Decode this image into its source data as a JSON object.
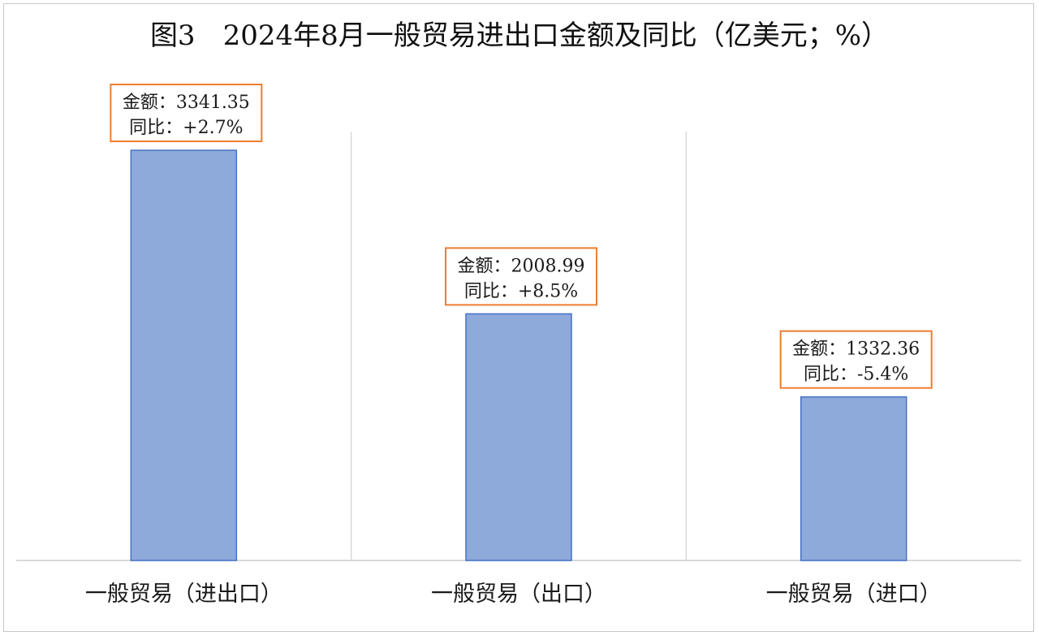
{
  "chart_data": {
    "type": "bar",
    "title": "图3　2024年8月一般贸易进出口金额及同比（亿美元；%）",
    "categories": [
      "一般贸易（进出口）",
      "一般贸易（出口）",
      "一般贸易（进口）"
    ],
    "values": [
      3341.35,
      2008.99,
      1332.36
    ],
    "yoy": [
      "+2.7%",
      "+8.5%",
      "-5.4%"
    ],
    "data_labels": [
      {
        "amount": "金额：3341.35",
        "yoy": "同比：+2.7%"
      },
      {
        "amount": "金额：2008.99",
        "yoy": "同比：+8.5%"
      },
      {
        "amount": "金额：1332.36",
        "yoy": "同比：-5.4%"
      }
    ],
    "xlabel": "",
    "ylabel": "",
    "ylim": [
      0,
      3341.35
    ],
    "grid": "vertical-category-separators",
    "legend": "none"
  },
  "colors": {
    "bar_fill": "#8eaadb",
    "bar_stroke": "#4472c4",
    "label_border": "#ed7d31",
    "gridline": "#d9d9d9",
    "axis": "#d9d9d9"
  }
}
